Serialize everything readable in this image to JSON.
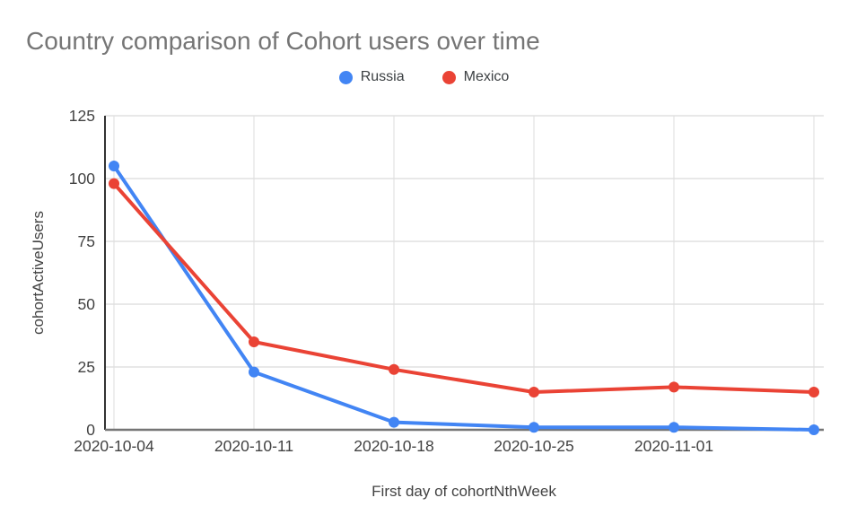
{
  "title": "Country comparison of Cohort users over time",
  "legend": [
    {
      "label": "Russia",
      "color": "#4285F4"
    },
    {
      "label": "Mexico",
      "color": "#EA4335"
    }
  ],
  "chart_data": {
    "type": "line",
    "title": "Country comparison of Cohort users over time",
    "xlabel": "First day of cohortNthWeek",
    "ylabel": "cohortActiveUsers",
    "categories": [
      "2020-10-04",
      "2020-10-11",
      "2020-10-18",
      "2020-10-25",
      "2020-11-01",
      ""
    ],
    "series": [
      {
        "name": "Russia",
        "color": "#4285F4",
        "values": [
          105,
          23,
          3,
          1,
          1,
          0
        ]
      },
      {
        "name": "Mexico",
        "color": "#EA4335",
        "values": [
          98,
          35,
          24,
          15,
          17,
          15
        ]
      }
    ],
    "ylim": [
      0,
      125
    ],
    "yticks": [
      0,
      25,
      50,
      75,
      100,
      125
    ],
    "grid": true,
    "legend_position": "top",
    "colors": {
      "title_text": "#757575",
      "axis_text": "#424242",
      "y_axis_line": "#333333",
      "x_baseline": "#757575",
      "h_gridline": "#e0e0e0",
      "v_gridline": "#e8e8e8"
    }
  }
}
